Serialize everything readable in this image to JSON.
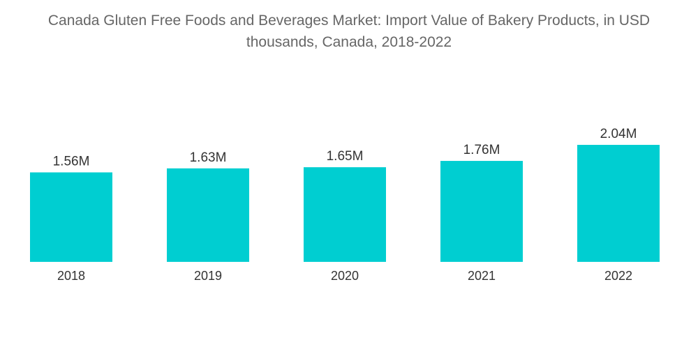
{
  "chart_data": {
    "type": "bar",
    "title": "Canada Gluten Free Foods and Beverages Market: Import Value of Bakery Products, in USD thousands, Canada, 2018-2022",
    "categories": [
      "2018",
      "2019",
      "2020",
      "2021",
      "2022"
    ],
    "values": [
      1.56,
      1.63,
      1.65,
      1.76,
      2.04
    ],
    "value_labels": [
      "1.56M",
      "1.63M",
      "1.65M",
      "1.76M",
      "2.04M"
    ],
    "unit": "M",
    "xlabel": "",
    "ylabel": "",
    "ylim": [
      0,
      2.04
    ],
    "grid": false,
    "legend": "none",
    "y_axis_visible": false,
    "colors": {
      "bar": "#00CED1",
      "baseline": "#d9d9d9",
      "text": "#333333",
      "title": "#666666"
    }
  }
}
